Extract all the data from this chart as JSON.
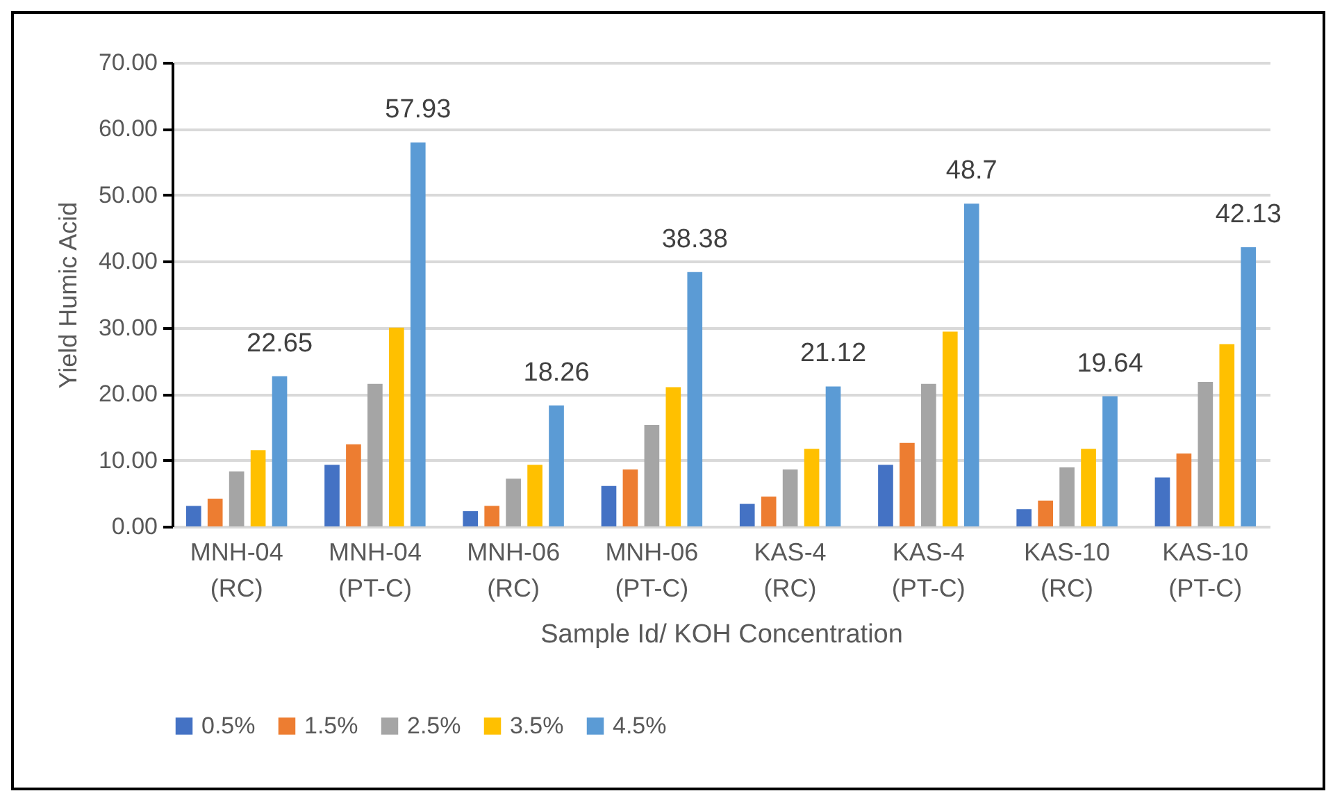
{
  "chart_data": {
    "type": "bar",
    "xlabel": "Sample Id/ KOH Concentration",
    "ylabel": "Yield Humic Acid",
    "categories": [
      "MNH-04 (RC)",
      "MNH-04 (PT-C)",
      "MNH-06 (RC)",
      "MNH-06 (PT-C)",
      "KAS-4 (RC)",
      "KAS-4 (PT-C)",
      "KAS-10 (RC)",
      "KAS-10 (PT-C)"
    ],
    "series": [
      {
        "name": "0.5%",
        "color": "#4472c4",
        "values": [
          3.1,
          9.3,
          2.3,
          6.1,
          3.4,
          9.3,
          2.6,
          7.4
        ]
      },
      {
        "name": "1.5%",
        "color": "#ed7d31",
        "values": [
          4.2,
          12.4,
          3.1,
          8.6,
          4.5,
          12.6,
          3.9,
          11.0
        ]
      },
      {
        "name": "2.5%",
        "color": "#a5a5a5",
        "values": [
          8.3,
          21.5,
          7.2,
          15.3,
          8.6,
          21.5,
          8.9,
          21.8
        ]
      },
      {
        "name": "3.5%",
        "color": "#ffc000",
        "values": [
          11.5,
          30.0,
          9.3,
          21.0,
          11.7,
          29.4,
          11.7,
          27.5
        ]
      },
      {
        "name": "4.5%",
        "color": "#5b9bd5",
        "values": [
          22.65,
          57.93,
          18.26,
          38.38,
          21.12,
          48.7,
          19.64,
          42.13
        ],
        "value_labels": [
          "22.65",
          "57.93",
          "18.26",
          "38.38",
          "21.12",
          "48.7",
          "19.64",
          "42.13"
        ]
      }
    ],
    "ylim": [
      0,
      70
    ],
    "yticks": [
      {
        "value": 0,
        "label": "0.00"
      },
      {
        "value": 10,
        "label": "10.00"
      },
      {
        "value": 20,
        "label": "20.00"
      },
      {
        "value": 30,
        "label": "30.00"
      },
      {
        "value": 40,
        "label": "40.00"
      },
      {
        "value": 50,
        "label": "50.00"
      },
      {
        "value": 60,
        "label": "60.00"
      },
      {
        "value": 70,
        "label": "70.00"
      }
    ],
    "grid": "y",
    "legend": "bottom"
  }
}
